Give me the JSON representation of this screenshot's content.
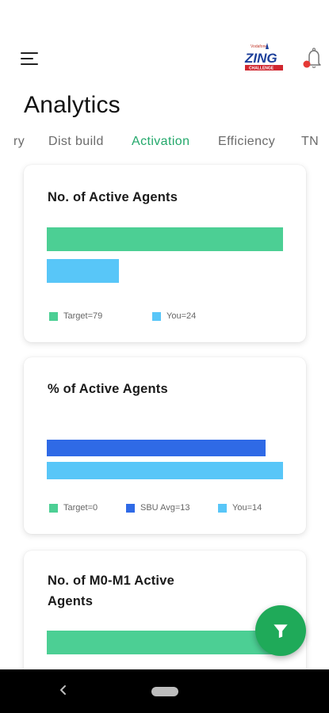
{
  "header": {
    "menu_icon": "hamburger-icon",
    "logo_small": "Vodafone",
    "logo_text": "ZING",
    "logo_sub": "CHALLENGE",
    "bell_icon": "bell-icon"
  },
  "page": {
    "title": "Analytics"
  },
  "tabs": [
    {
      "label": "ry",
      "active": false
    },
    {
      "label": "Dist build",
      "active": false
    },
    {
      "label": "Activation",
      "active": true
    },
    {
      "label": "Efficiency",
      "active": false
    },
    {
      "label": "TN",
      "active": false
    }
  ],
  "colors": {
    "target": "#4ccf94",
    "sbu_avg": "#2f6ae6",
    "you": "#58c6f8",
    "accent": "#23a86b",
    "fab": "#1faa59"
  },
  "cards": [
    {
      "title": "No. of Active Agents",
      "chart_data": {
        "type": "bar",
        "orientation": "horizontal",
        "series": [
          {
            "name": "Target",
            "value": 79
          },
          {
            "name": "You",
            "value": 24
          }
        ],
        "legend": [
          "Target=79",
          "You=24"
        ]
      }
    },
    {
      "title": "% of Active Agents",
      "chart_data": {
        "type": "bar",
        "orientation": "horizontal",
        "series": [
          {
            "name": "Target",
            "value": 0
          },
          {
            "name": "SBU Avg",
            "value": 13
          },
          {
            "name": "You",
            "value": 14
          }
        ],
        "legend": [
          "Target=0",
          "SBU Avg=13",
          "You=14"
        ]
      }
    },
    {
      "title_line1": "No. of M0-M1 Active",
      "title_line2": "Agents"
    }
  ],
  "fab": {
    "icon": "filter-icon"
  },
  "nav": {
    "back_icon": "back-icon",
    "home_icon": "home-pill-icon"
  }
}
